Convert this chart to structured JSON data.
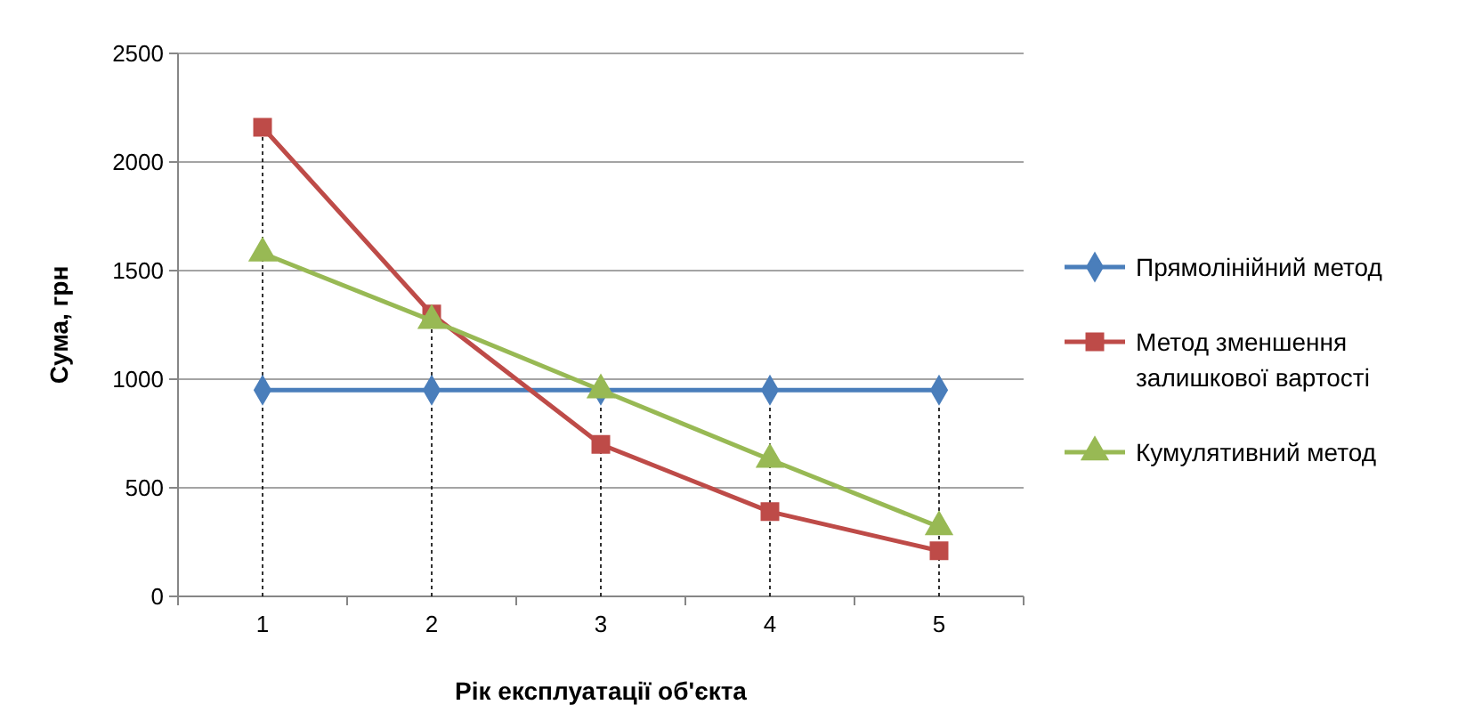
{
  "chart_data": {
    "type": "line",
    "xlabel": "Рік експлуатації об'єкта",
    "ylabel": "Сума, грн",
    "categories": [
      "1",
      "2",
      "3",
      "4",
      "5"
    ],
    "ylim": [
      0,
      2500
    ],
    "yticks": [
      0,
      500,
      1000,
      1500,
      2000,
      2500
    ],
    "grid": "y",
    "legend": "right",
    "series": [
      {
        "name": "Прямолінійний метод",
        "color": "#4a7ebb",
        "marker": "diamond",
        "values": [
          950,
          950,
          950,
          950,
          950
        ]
      },
      {
        "name": "Метод зменшення залишкової вартості",
        "color": "#be4b48",
        "marker": "square",
        "values": [
          2160,
          1300,
          700,
          390,
          210
        ]
      },
      {
        "name": "Кумулятивний метод",
        "color": "#98b954",
        "marker": "triangle",
        "values": [
          1580,
          1270,
          950,
          630,
          320
        ]
      }
    ],
    "ref_lines": [
      {
        "axis": "x",
        "value": "1",
        "color": "#000000",
        "line_style": "dotted"
      },
      {
        "axis": "x",
        "value": "2",
        "color": "#000000",
        "line_style": "dotted"
      },
      {
        "axis": "x",
        "value": "3",
        "color": "#000000",
        "line_style": "dotted"
      },
      {
        "axis": "x",
        "value": "4",
        "color": "#000000",
        "line_style": "dotted"
      },
      {
        "axis": "x",
        "value": "5",
        "color": "#000000",
        "line_style": "dotted"
      }
    ]
  }
}
